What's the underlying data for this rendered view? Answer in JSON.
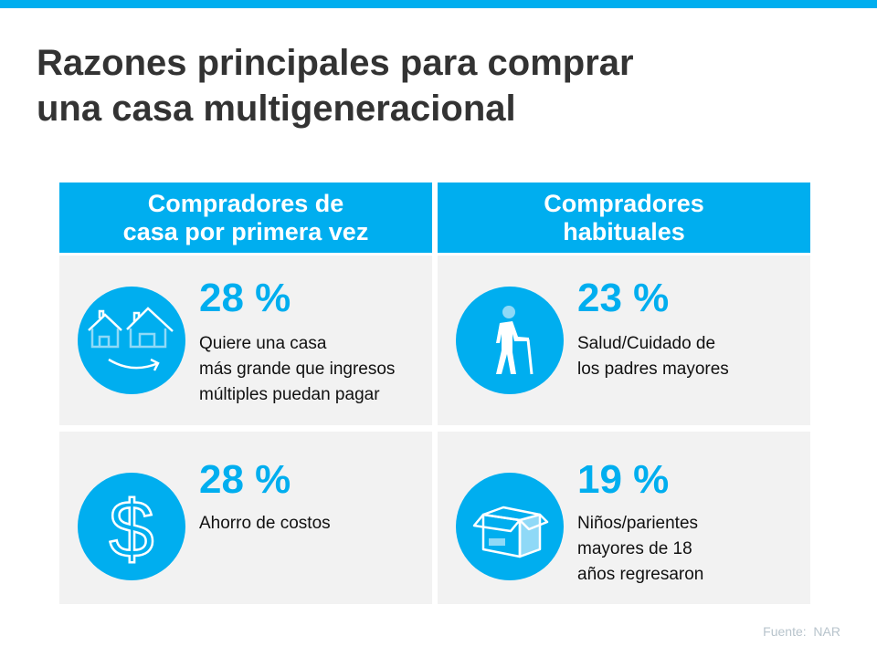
{
  "title": [
    "Razones principales para comprar",
    "una casa multigeneracional"
  ],
  "columns": [
    {
      "header": [
        "Compradores de",
        "casa por primera vez"
      ],
      "items": [
        {
          "icon": "houses-icon",
          "percent": "28 %",
          "lines": [
            "Quiere una casa",
            "más grande que ingresos",
            "múltiples puedan pagar"
          ]
        },
        {
          "icon": "dollar-icon",
          "percent": "28 %",
          "lines": [
            "Ahorro de costos"
          ]
        }
      ]
    },
    {
      "header": [
        "Compradores",
        "habituales"
      ],
      "items": [
        {
          "icon": "elderly-person-icon",
          "percent": "23 %",
          "lines": [
            "Salud/Cuidado de",
            "los padres mayores"
          ]
        },
        {
          "icon": "open-box-icon",
          "percent": "19 %",
          "lines": [
            "Niños/parientes",
            "mayores de 18",
            "años regresaron"
          ]
        }
      ]
    }
  ],
  "source": "Fuente:  NAR",
  "colors": {
    "accent": "#00aeef",
    "cell": "#f2f2f2",
    "title": "#333333"
  }
}
